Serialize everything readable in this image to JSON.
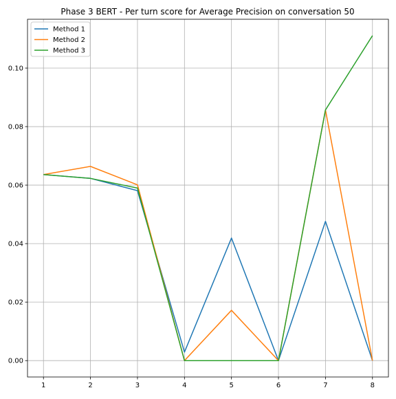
{
  "chart_data": {
    "type": "line",
    "title": "Phase 3 BERT - Per turn score for Average Precision on conversation 50",
    "xlabel": "",
    "ylabel": "",
    "x": [
      1,
      2,
      3,
      4,
      5,
      6,
      7,
      8
    ],
    "xticks": [
      "1",
      "2",
      "3",
      "4",
      "5",
      "6",
      "7",
      "8"
    ],
    "yticks": [
      "0.00",
      "0.02",
      "0.04",
      "0.06",
      "0.08",
      "0.10"
    ],
    "ytick_values": [
      0.0,
      0.02,
      0.04,
      0.06,
      0.08,
      0.1
    ],
    "xlim": [
      0.66,
      8.34
    ],
    "ylim": [
      -0.0056,
      0.1167
    ],
    "grid": true,
    "legend_position": "top-left",
    "series": [
      {
        "name": "Method 1",
        "color": "#1f77b4",
        "values": [
          0.0636,
          0.0623,
          0.0581,
          0.0029,
          0.0419,
          0.0,
          0.0476,
          0.0
        ]
      },
      {
        "name": "Method 2",
        "color": "#ff7f0e",
        "values": [
          0.0636,
          0.0664,
          0.0601,
          0.0,
          0.0172,
          0.0,
          0.0857,
          0.0
        ]
      },
      {
        "name": "Method 3",
        "color": "#2ca02c",
        "values": [
          0.0636,
          0.0623,
          0.059,
          0.0,
          0.0,
          0.0,
          0.0857,
          0.1111
        ]
      }
    ]
  }
}
